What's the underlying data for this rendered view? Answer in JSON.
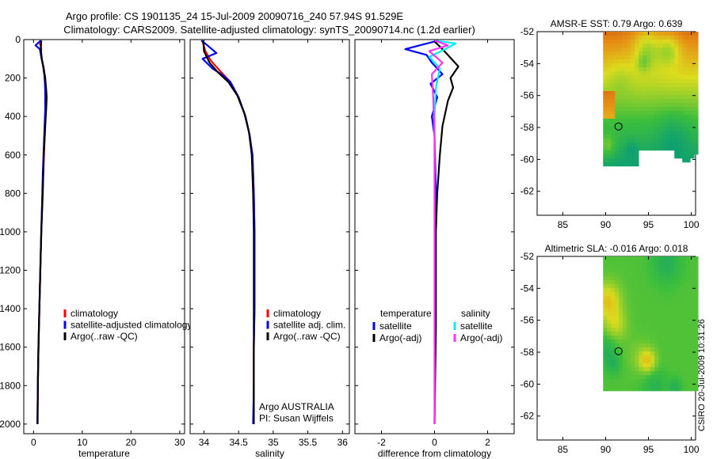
{
  "title_line1": "Argo profile: CS 1901135_24 15-Jul-2009 20090716_240 57.94S 91.529E",
  "title_line2": "Climatology: CARS2009. Satellite-adjusted climatology: synTS_20090714.nc (1.2d earlier)",
  "credit": "CSIRO 20-Jul-2009 10:31:26",
  "argo_note": [
    "Argo AUSTRALIA",
    "PI: Susan Wijffels"
  ],
  "colors": {
    "red": "#ff0000",
    "blue": "#0000ff",
    "black": "#000000",
    "cyan": "#00eeee",
    "magenta": "#ff33ff",
    "marker": "#000000"
  },
  "chart_data": [
    {
      "type": "line",
      "id": "temperature",
      "title": "",
      "xlabel": "temperature",
      "ylabel": "",
      "xlim": [
        -2,
        31
      ],
      "ylim": [
        2050,
        0
      ],
      "xticks": [
        0,
        10,
        20,
        30
      ],
      "yticks": [
        0,
        200,
        400,
        600,
        800,
        1000,
        1200,
        1400,
        1600,
        1800,
        2000
      ],
      "legend": {
        "entries": [
          {
            "label": "climatology",
            "color": "red"
          },
          {
            "label": "satellite-adjusted climatology",
            "color": "blue"
          },
          {
            "label": "Argo(..raw -QC)",
            "color": "black"
          }
        ]
      },
      "series": [
        {
          "name": "climatology",
          "color": "red",
          "points": [
            [
              1.2,
              10
            ],
            [
              1.6,
              50
            ],
            [
              1.5,
              80
            ],
            [
              1.9,
              130
            ],
            [
              2.2,
              180
            ],
            [
              2.4,
              250
            ],
            [
              2.5,
              350
            ],
            [
              2.3,
              500
            ],
            [
              2.0,
              700
            ],
            [
              1.7,
              900
            ],
            [
              1.5,
              1100
            ],
            [
              1.3,
              1300
            ],
            [
              1.1,
              1500
            ],
            [
              0.95,
              1700
            ],
            [
              0.85,
              1900
            ],
            [
              0.8,
              2000
            ]
          ]
        },
        {
          "name": "satellite-adjusted climatology",
          "color": "blue",
          "points": [
            [
              1.5,
              5
            ],
            [
              0.4,
              30
            ],
            [
              1.3,
              50
            ],
            [
              1.6,
              90
            ],
            [
              2.0,
              140
            ],
            [
              2.3,
              200
            ],
            [
              2.4,
              280
            ],
            [
              2.4,
              360
            ],
            [
              2.2,
              500
            ],
            [
              1.9,
              700
            ],
            [
              1.7,
              900
            ],
            [
              1.5,
              1100
            ],
            [
              1.3,
              1300
            ],
            [
              1.1,
              1500
            ],
            [
              0.95,
              1700
            ],
            [
              0.85,
              1900
            ],
            [
              0.8,
              2000
            ]
          ]
        },
        {
          "name": "Argo(..raw -QC)",
          "color": "black",
          "points": [
            [
              1.6,
              5
            ],
            [
              1.5,
              50
            ],
            [
              1.7,
              100
            ],
            [
              2.1,
              150
            ],
            [
              2.4,
              200
            ],
            [
              2.6,
              260
            ],
            [
              2.7,
              300
            ],
            [
              2.6,
              360
            ],
            [
              2.4,
              450
            ],
            [
              2.1,
              600
            ],
            [
              1.9,
              800
            ],
            [
              1.6,
              1000
            ],
            [
              1.4,
              1200
            ],
            [
              1.2,
              1400
            ],
            [
              1.0,
              1600
            ],
            [
              0.9,
              1800
            ],
            [
              0.85,
              2000
            ]
          ]
        }
      ]
    },
    {
      "type": "line",
      "id": "salinity",
      "title": "",
      "xlabel": "salinity",
      "ylabel": "",
      "xlim": [
        33.8,
        36.1
      ],
      "ylim": [
        2050,
        0
      ],
      "xticks": [
        34,
        34.5,
        35,
        35.5,
        36
      ],
      "legend": {
        "entries": [
          {
            "label": "climatology",
            "color": "red"
          },
          {
            "label": "satellite adj. clim.",
            "color": "blue"
          },
          {
            "label": "Argo(..raw -QC)",
            "color": "black"
          }
        ]
      },
      "series": [
        {
          "name": "climatology",
          "color": "red",
          "points": [
            [
              33.98,
              10
            ],
            [
              34.02,
              60
            ],
            [
              34.1,
              110
            ],
            [
              34.25,
              170
            ],
            [
              34.38,
              220
            ],
            [
              34.5,
              300
            ],
            [
              34.6,
              400
            ],
            [
              34.66,
              500
            ],
            [
              34.7,
              600
            ],
            [
              34.72,
              800
            ],
            [
              34.73,
              1000
            ],
            [
              34.73,
              1200
            ],
            [
              34.73,
              1400
            ],
            [
              34.72,
              1600
            ],
            [
              34.72,
              1800
            ],
            [
              34.72,
              2000
            ]
          ]
        },
        {
          "name": "satellite adj. clim.",
          "color": "blue",
          "points": [
            [
              33.96,
              5
            ],
            [
              34.05,
              30
            ],
            [
              34.18,
              70
            ],
            [
              33.98,
              100
            ],
            [
              34.12,
              150
            ],
            [
              34.25,
              180
            ],
            [
              34.38,
              220
            ],
            [
              34.5,
              300
            ],
            [
              34.6,
              400
            ],
            [
              34.66,
              500
            ],
            [
              34.7,
              600
            ],
            [
              34.72,
              800
            ],
            [
              34.73,
              1000
            ],
            [
              34.73,
              1200
            ],
            [
              34.73,
              1400
            ],
            [
              34.72,
              1600
            ],
            [
              34.72,
              1800
            ],
            [
              34.71,
              2000
            ]
          ]
        },
        {
          "name": "Argo(..raw -QC)",
          "color": "black",
          "points": [
            [
              33.99,
              5
            ],
            [
              34.0,
              60
            ],
            [
              34.08,
              120
            ],
            [
              34.2,
              170
            ],
            [
              34.35,
              220
            ],
            [
              34.48,
              290
            ],
            [
              34.58,
              380
            ],
            [
              34.65,
              480
            ],
            [
              34.69,
              600
            ],
            [
              34.71,
              800
            ],
            [
              34.72,
              1000
            ],
            [
              34.72,
              1200
            ],
            [
              34.72,
              1400
            ],
            [
              34.72,
              1600
            ],
            [
              34.72,
              1800
            ],
            [
              34.72,
              2000
            ]
          ]
        }
      ]
    },
    {
      "type": "line",
      "id": "difference",
      "title": "",
      "xlabel": "difference from climatology",
      "ylabel": "",
      "xlim": [
        -3,
        3
      ],
      "ylim": [
        2050,
        0
      ],
      "xticks": [
        -2,
        0,
        2
      ],
      "legend": {
        "headers": [
          "temperature",
          "salinity"
        ],
        "entries": [
          {
            "label": "satellite",
            "color": "blue"
          },
          {
            "label": "Argo(-adj)",
            "color": "black"
          },
          {
            "label": "satellite",
            "color": "cyan"
          },
          {
            "label": "Argo(-adj)",
            "color": "magenta"
          }
        ]
      },
      "series": [
        {
          "name": "temperature satellite",
          "color": "blue",
          "points": [
            [
              0,
              10
            ],
            [
              -1.1,
              50
            ],
            [
              -0.3,
              80
            ],
            [
              -0.1,
              120
            ],
            [
              0.3,
              180
            ],
            [
              -0.15,
              230
            ],
            [
              0.1,
              300
            ],
            [
              -0.1,
              400
            ],
            [
              0,
              500
            ],
            [
              0.05,
              800
            ],
            [
              0,
              2000
            ]
          ]
        },
        {
          "name": "temperature Argo(-adj)",
          "color": "black",
          "points": [
            [
              0,
              10
            ],
            [
              0.3,
              50
            ],
            [
              0.5,
              80
            ],
            [
              0.9,
              140
            ],
            [
              0.6,
              200
            ],
            [
              0.7,
              250
            ],
            [
              0.5,
              320
            ],
            [
              0.3,
              450
            ],
            [
              0.2,
              600
            ],
            [
              0.1,
              800
            ],
            [
              0.05,
              1000
            ],
            [
              0.05,
              1500
            ],
            [
              0,
              2000
            ]
          ]
        },
        {
          "name": "salinity satellite",
          "color": "cyan",
          "points": [
            [
              0,
              5
            ],
            [
              0.8,
              20
            ],
            [
              0.4,
              50
            ],
            [
              -0.2,
              90
            ],
            [
              0.2,
              150
            ],
            [
              0.05,
              250
            ],
            [
              0,
              400
            ],
            [
              0,
              800
            ],
            [
              0,
              2000
            ]
          ]
        },
        {
          "name": "salinity Argo(-adj)",
          "color": "magenta",
          "points": [
            [
              0,
              5
            ],
            [
              0.5,
              30
            ],
            [
              -0.2,
              60
            ],
            [
              0.3,
              120
            ],
            [
              -0.1,
              180
            ],
            [
              -0.05,
              300
            ],
            [
              0,
              500
            ],
            [
              0,
              2000
            ]
          ]
        }
      ]
    },
    {
      "type": "heatmap",
      "id": "sst",
      "title": "AMSR-E SST: 0.79 Argo: 0.639",
      "xlim": [
        82,
        100.5
      ],
      "ylim": [
        -63.5,
        -52
      ],
      "xticks": [
        85,
        90,
        95,
        100
      ],
      "yticks": [
        -52,
        -54,
        -56,
        -58,
        -60,
        -62
      ],
      "marker": [
        91.5,
        -57.94
      ]
    },
    {
      "type": "heatmap",
      "id": "sla",
      "title": "Altimetric SLA: -0.016 Argo: 0.018",
      "xlim": [
        82,
        100.5
      ],
      "ylim": [
        -63.5,
        -52
      ],
      "xticks": [
        85,
        90,
        95,
        100
      ],
      "yticks": [
        -52,
        -54,
        -56,
        -58,
        -60,
        -62
      ],
      "marker": [
        91.5,
        -57.94
      ]
    }
  ]
}
